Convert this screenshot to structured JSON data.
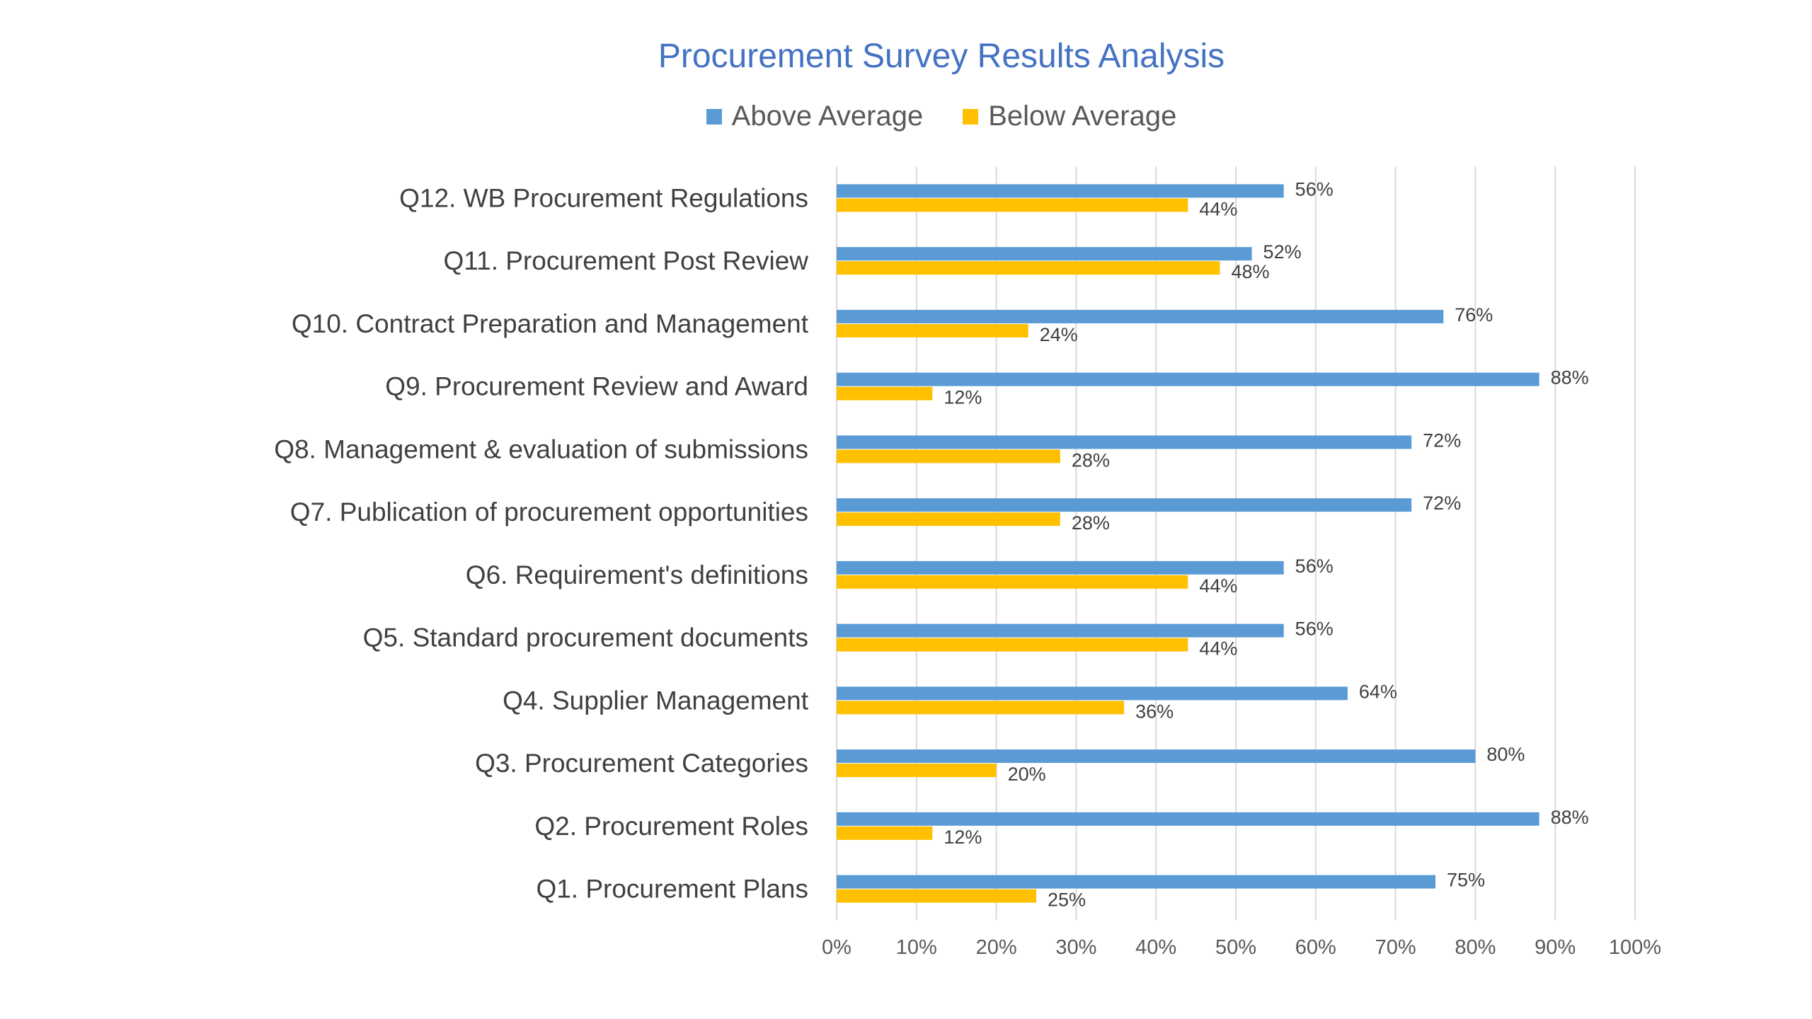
{
  "chart_data": {
    "type": "bar",
    "orientation": "horizontal",
    "title": "Procurement Survey Results Analysis",
    "categories": [
      "Q12. WB Procurement Regulations",
      "Q11.  Procurement Post Review",
      "Q10. Contract Preparation and Management",
      "Q9. Procurement Review and Award",
      "Q8. Management & evaluation of submissions",
      "Q7. Publication of procurement opportunities",
      "Q6. Requirement's definitions",
      "Q5. Standard procurement documents",
      "Q4. Supplier Management",
      "Q3. Procurement Categories",
      "Q2. Procurement Roles",
      "Q1. Procurement Plans"
    ],
    "series": [
      {
        "name": "Above Average",
        "color": "#5b9bd5",
        "values": [
          56,
          52,
          76,
          88,
          72,
          72,
          56,
          56,
          64,
          80,
          88,
          75
        ],
        "labels": [
          "56%",
          "52%",
          "76%",
          "88%",
          "72%",
          "72%",
          "56%",
          "56%",
          "64%",
          "80%",
          "88%",
          "75%"
        ]
      },
      {
        "name": "Below Average",
        "color": "#ffc000",
        "values": [
          44,
          48,
          24,
          12,
          28,
          28,
          44,
          44,
          36,
          20,
          12,
          25
        ],
        "labels": [
          "44%",
          "48%",
          "24%",
          "12%",
          "28%",
          "28%",
          "44%",
          "44%",
          "36%",
          "20%",
          "12%",
          "25%"
        ]
      }
    ],
    "xlim": [
      0,
      100
    ],
    "xticks": [
      "0%",
      "10%",
      "20%",
      "30%",
      "40%",
      "50%",
      "60%",
      "70%",
      "80%",
      "90%",
      "100%"
    ],
    "grid": true,
    "legend": "top-center",
    "gridline_color": "#d9d9d9"
  }
}
